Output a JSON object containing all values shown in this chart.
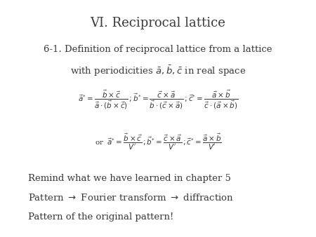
{
  "title": "VI. Reciprocal lattice",
  "title_fontsize": 13,
  "bg_color": "#ffffff",
  "text_color": "#3a3a3a",
  "sub_line1": "6-1. Definition of reciprocal lattice from a lattice",
  "sub_line2": "with periodicities $\\bar{a},\\bar{b},\\bar{c}$ in real space",
  "sub_fontsize": 9.5,
  "eq1": "$\\vec{a}^{*} = \\dfrac{\\vec{b}\\times\\vec{c}}{\\vec{a}\\cdot(\\vec{b}\\times\\vec{c})}\\,;\\vec{b}^{*} = \\dfrac{\\vec{c}\\times\\vec{a}}{\\vec{b}\\cdot(\\vec{c}\\times\\vec{a})}\\,;\\vec{c}^{*} = \\dfrac{\\vec{a}\\times\\vec{b}}{\\vec{c}\\cdot(\\vec{a}\\times\\vec{b})}$",
  "eq1_fontsize": 7.5,
  "eq2": "or $\\;\\vec{a}^{*} = \\dfrac{\\vec{b}\\times\\vec{c}}{V^{\\prime}}\\,;\\vec{b}^{*} = \\dfrac{\\vec{c}\\times\\vec{a}}{V^{\\prime}}\\,;\\vec{c}^{*} = \\dfrac{\\vec{a}\\times\\vec{b}}{V^{\\prime}}$",
  "eq2_fontsize": 7.5,
  "remind1": "Remind what we have learned in chapter 5",
  "remind2": "Pattern $\\rightarrow$ Fourier transform $\\rightarrow$ diffraction",
  "remind3": "Pattern of the original pattern!",
  "remind_fontsize": 9.5
}
